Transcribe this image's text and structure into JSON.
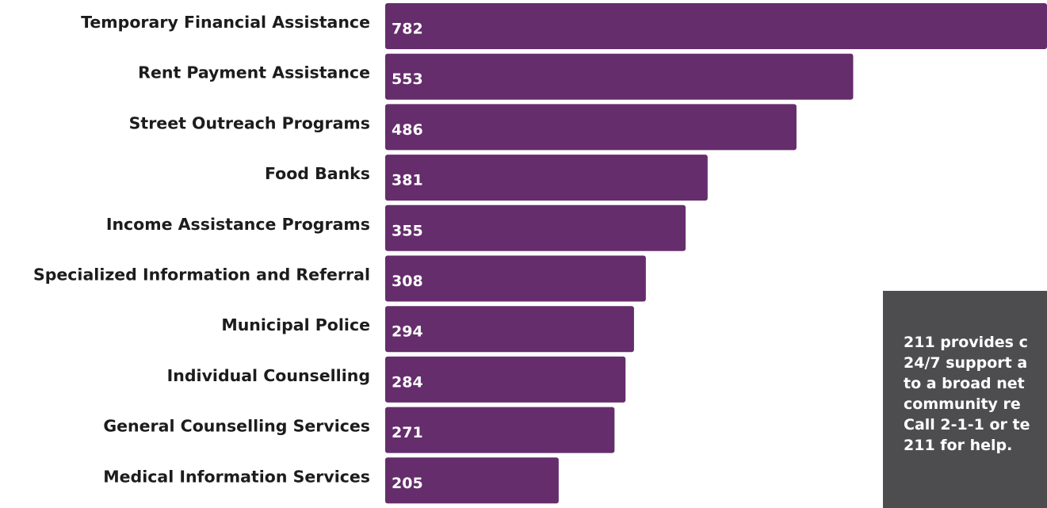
{
  "chart_data": {
    "type": "bar",
    "orientation": "horizontal",
    "categories": [
      "Temporary Financial Assistance",
      "Rent Payment Assistance",
      "Street Outreach Programs",
      "Food Banks",
      "Income Assistance Programs",
      "Specialized Information and Referral",
      "Municipal Police",
      "Individual Counselling",
      "General Counselling Services",
      "Medical Information Services"
    ],
    "values": [
      782,
      553,
      486,
      381,
      355,
      308,
      294,
      284,
      271,
      205
    ],
    "xlim": [
      0,
      782
    ],
    "grid": false,
    "bar_color": "#652d6c",
    "data_labels": "inside-left"
  },
  "info_box": {
    "text": "211 provides c\n24/7 support a\nto a broad net\ncommunity re\nCall 2-1-1 or te\n211 for help.",
    "background": "#4d4d4f",
    "text_color": "#ffffff"
  }
}
